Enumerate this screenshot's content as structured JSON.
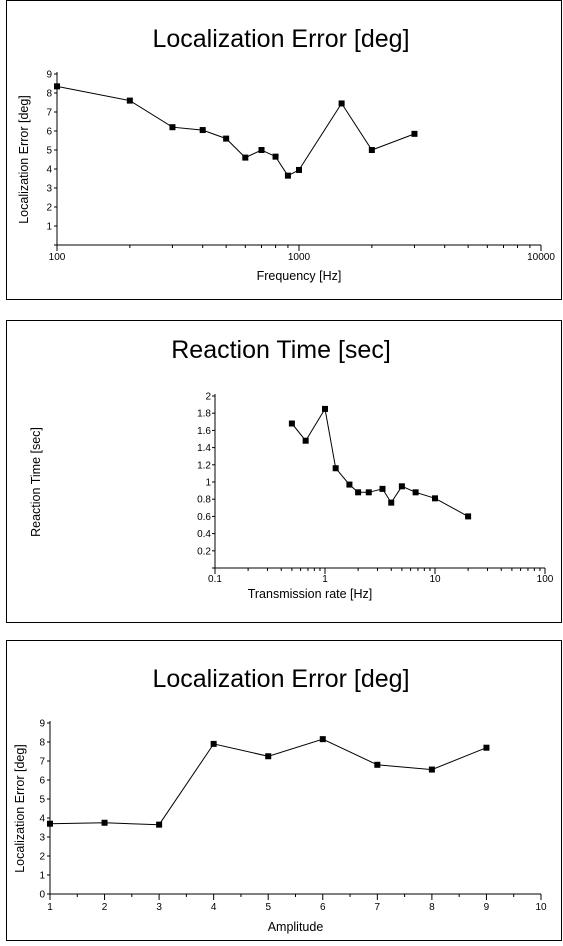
{
  "chart_data": [
    {
      "type": "line",
      "title": "Localization Error [deg]",
      "xlabel": "Frequency [Hz]",
      "ylabel": "Localization Error [deg]",
      "xscale": "log",
      "xlim": [
        100,
        10000
      ],
      "ylim": [
        0,
        9
      ],
      "x_tick_labels": [
        "100",
        "1000",
        "10000"
      ],
      "y_tick_labels": [
        "1",
        "2",
        "3",
        "4",
        "5",
        "6",
        "7",
        "8",
        "9"
      ],
      "x": [
        100,
        200,
        300,
        400,
        500,
        600,
        700,
        800,
        900,
        1000,
        1500,
        2000,
        3000
      ],
      "y": [
        8.35,
        7.6,
        6.2,
        6.05,
        5.6,
        4.6,
        5.0,
        4.65,
        3.65,
        3.95,
        7.45,
        5.0,
        5.85
      ],
      "grid": false
    },
    {
      "type": "line",
      "title": "Reaction Time [sec]",
      "xlabel": "Transmission rate [Hz]",
      "ylabel": "Reaction Time [sec]",
      "xscale": "log",
      "xlim": [
        0.1,
        100
      ],
      "ylim": [
        0,
        2
      ],
      "x_tick_labels": [
        "0.1",
        "1",
        "10",
        "100"
      ],
      "y_tick_labels": [
        "0.2",
        "0.4",
        "0.6",
        "0.8",
        "1",
        "1.2",
        "1.4",
        "1.6",
        "1.8",
        "2"
      ],
      "x": [
        0.5,
        0.667,
        1.0,
        1.25,
        1.667,
        2.0,
        2.5,
        3.333,
        4.0,
        5.0,
        6.667,
        10.0,
        20.0
      ],
      "y": [
        1.68,
        1.48,
        1.85,
        1.16,
        0.97,
        0.88,
        0.88,
        0.92,
        0.76,
        0.95,
        0.88,
        0.81,
        0.6
      ],
      "grid": false
    },
    {
      "type": "line",
      "title": "Localization Error [deg]",
      "xlabel": "Amplitude",
      "ylabel": "Localization Error [deg]",
      "xscale": "linear",
      "xlim": [
        1,
        10
      ],
      "ylim": [
        0,
        9
      ],
      "x_tick_labels": [
        "1",
        "2",
        "3",
        "4",
        "5",
        "6",
        "7",
        "8",
        "9",
        "10"
      ],
      "y_tick_labels": [
        "0",
        "1",
        "2",
        "3",
        "4",
        "5",
        "6",
        "7",
        "8",
        "9"
      ],
      "x": [
        1,
        2,
        3,
        4,
        5,
        6,
        7,
        8,
        9
      ],
      "y": [
        3.7,
        3.75,
        3.65,
        7.9,
        7.25,
        8.15,
        6.8,
        6.55,
        7.7
      ],
      "grid": false
    }
  ]
}
